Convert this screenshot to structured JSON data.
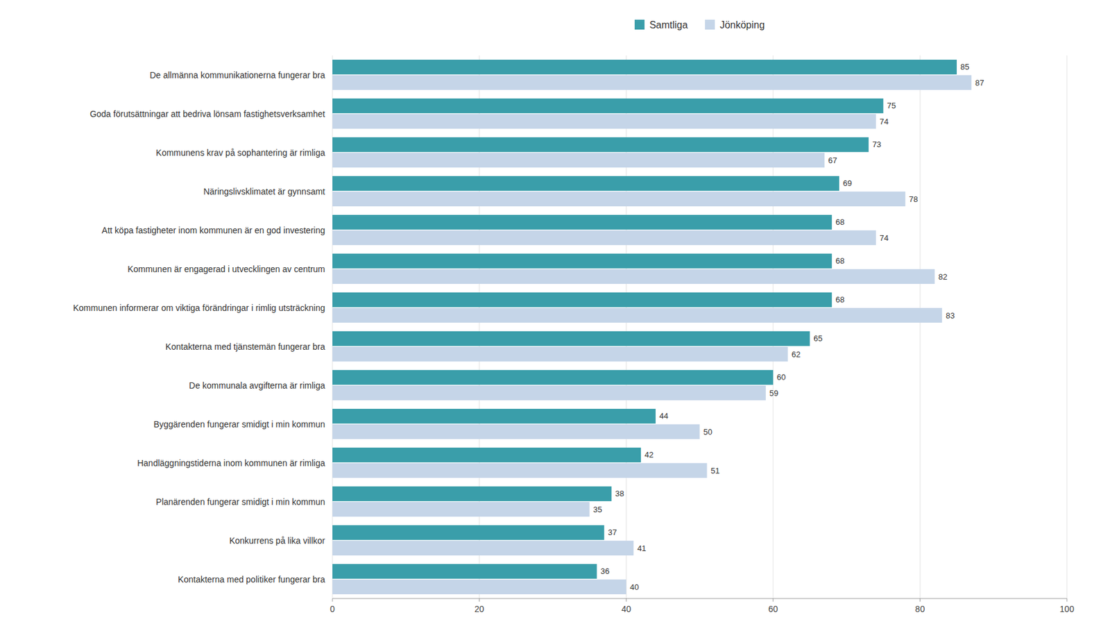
{
  "chart_data": {
    "type": "bar",
    "orientation": "horizontal",
    "categories": [
      "De allmänna kommunikationerna fungerar bra",
      "Goda förutsättningar att bedriva lönsam fastighetsverksamhet",
      "Kommunens krav på sophantering är rimliga",
      "Näringslivsklimatet är gynnsamt",
      "Att köpa fastigheter inom kommunen är en god investering",
      "Kommunen är engagerad i utvecklingen av centrum",
      "Kommunen informerar om viktiga förändringar i rimlig utsträckning",
      "Kontakterna med tjänstemän fungerar bra",
      "De kommunala avgifterna är rimliga",
      "Byggärenden fungerar smidigt i min kommun",
      "Handläggningstiderna inom kommunen är rimliga",
      "Planärenden fungerar smidigt i min kommun",
      "Konkurrens på lika villkor",
      "Kontakterna med politiker fungerar bra"
    ],
    "series": [
      {
        "name": "Samtliga",
        "color": "#3a9eaa",
        "values": [
          85,
          75,
          73,
          69,
          68,
          68,
          68,
          65,
          60,
          44,
          42,
          38,
          37,
          36
        ]
      },
      {
        "name": "Jönköping",
        "color": "#c5d5e8",
        "values": [
          87,
          74,
          67,
          78,
          74,
          82,
          83,
          62,
          59,
          50,
          51,
          35,
          41,
          40
        ]
      }
    ],
    "xlim": [
      0,
      100
    ],
    "xticks": [
      0,
      20,
      40,
      60,
      80,
      100
    ],
    "grid": true,
    "legend": "top",
    "data_labels": true
  }
}
